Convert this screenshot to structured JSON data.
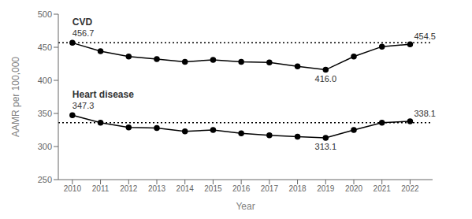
{
  "chart_data": {
    "type": "line",
    "xlabel": "Year",
    "ylabel": "AAMR per 100,000",
    "x": [
      2010,
      2011,
      2012,
      2013,
      2014,
      2015,
      2016,
      2017,
      2018,
      2019,
      2020,
      2021,
      2022
    ],
    "xlim": [
      2009.5,
      2022.8
    ],
    "xticks": [
      2010,
      2011,
      2012,
      2013,
      2014,
      2015,
      2016,
      2017,
      2018,
      2019,
      2020,
      2021,
      2022
    ],
    "ylim": [
      250,
      500
    ],
    "yticks": [
      250,
      300,
      350,
      400,
      450,
      500
    ],
    "grid": false,
    "marker": "circle",
    "series": [
      {
        "name": "CVD",
        "color": "#000000",
        "values": [
          456.7,
          444.0,
          436.0,
          432.0,
          428.0,
          431.0,
          428.0,
          427.0,
          421.0,
          416.0,
          436.0,
          451.0,
          454.5
        ],
        "labels": [
          {
            "x": 2010,
            "label": "456.7"
          },
          {
            "x": 2019,
            "label": "416.0"
          },
          {
            "x": 2022,
            "label": "454.5"
          }
        ]
      },
      {
        "name": "Heart disease",
        "color": "#000000",
        "values": [
          347.3,
          336.0,
          329.0,
          328.0,
          323.0,
          325.0,
          320.0,
          317.0,
          315.0,
          313.1,
          325.0,
          336.0,
          338.1
        ],
        "labels": [
          {
            "x": 2010,
            "label": "347.3"
          },
          {
            "x": 2019,
            "label": "313.1"
          },
          {
            "x": 2022,
            "label": "338.1"
          }
        ]
      }
    ],
    "reference_lines": [
      {
        "y": 456.7,
        "color": "#000000",
        "line_style": "dotted"
      },
      {
        "y": 336.0,
        "color": "#000000",
        "line_style": "dotted"
      }
    ]
  }
}
